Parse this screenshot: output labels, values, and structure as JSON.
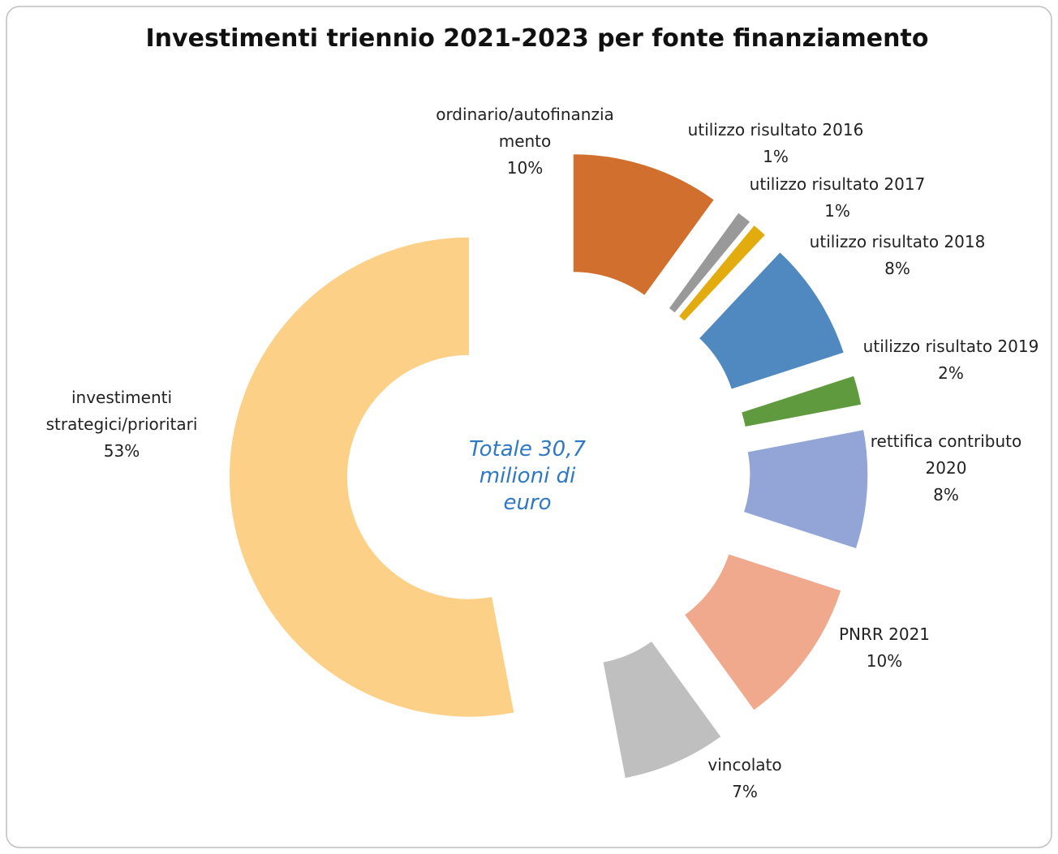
{
  "chart_data": {
    "type": "donut",
    "title": "Investimenti triennio 2021-2023 per fonte finanziamento",
    "center_text": "Totale 30,7 milioni di euro",
    "categories": [
      "ordinario/autofinanziamento",
      "utilizzo risultato 2016",
      "utilizzo risultato 2017",
      "utilizzo risultato 2018",
      "utilizzo risultato 2019",
      "rettifica contributo 2020",
      "PNRR 2021",
      "vincolato",
      "investimenti strategici/prioritari"
    ],
    "values": [
      10,
      1,
      1,
      8,
      2,
      8,
      10,
      7,
      53
    ],
    "value_labels": [
      "10%",
      "1%",
      "1%",
      "8%",
      "2%",
      "8%",
      "10%",
      "7%",
      "53%"
    ],
    "colors": [
      "#d06f2e",
      "#999999",
      "#e2ac0e",
      "#4f89bf",
      "#5f9a3e",
      "#92a5d6",
      "#f0a98c",
      "#bfbfbf",
      "#fdd088"
    ]
  }
}
